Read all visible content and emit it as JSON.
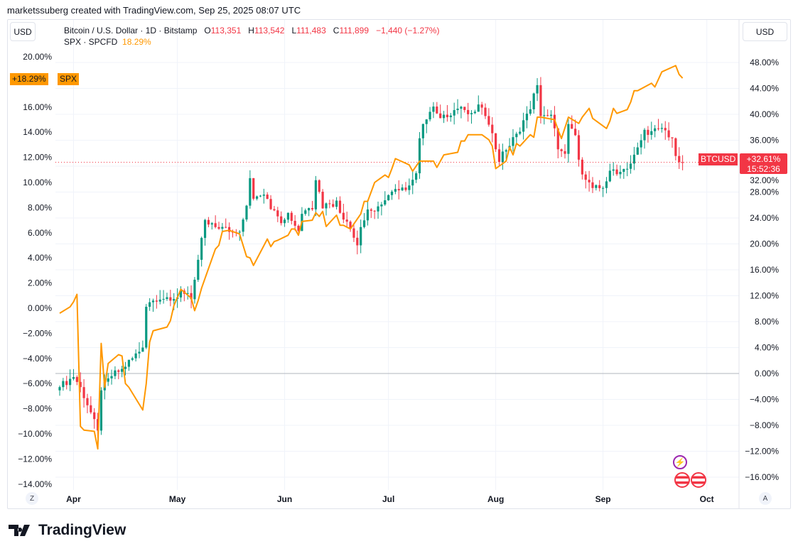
{
  "credit": "marketssuberg created with TradingView.com, Sep 25, 2025 08:07 UTC",
  "currency_left": "USD",
  "currency_right": "USD",
  "legend": {
    "symbol": "Bitcoin / U.S. Dollar · 1D · Bitstamp",
    "o_label": "O",
    "o": "113,351",
    "h_label": "H",
    "h": "113,542",
    "l_label": "L",
    "l": "111,483",
    "c_label": "C",
    "c": "111,899",
    "change": "−1,440 (−1.27%)",
    "spx": "SPX · SPCFD",
    "spx_value": "18.29%"
  },
  "labels": {
    "spx_pct": "+18.29%",
    "spx_name": "SPX",
    "btc_name": "BTCUSD",
    "btc_pct": "+32.61%",
    "btc_countdown": "15:52:36"
  },
  "buttons": {
    "z": "Z",
    "a": "A"
  },
  "logo": "TradingView",
  "icons": [
    "lightning-event-icon",
    "us-flag-icon",
    "us-flag-icon",
    "tradingview-logo-icon"
  ],
  "colors": {
    "up": "#089981",
    "down": "#f23645",
    "spx": "#ff9800",
    "zero": "#b2b5be"
  },
  "chart_data": {
    "type": "candlestick+line",
    "x_ticks": [
      "Apr",
      "May",
      "Jun",
      "Jul",
      "Aug",
      "Sep",
      "Oct"
    ],
    "left_axis": {
      "ticks": [
        "20.00%",
        "16.00%",
        "14.00%",
        "12.00%",
        "10.00%",
        "8.00%",
        "6.00%",
        "4.00%",
        "2.00%",
        "0.00%",
        "−2.00%",
        "−4.00%",
        "−6.00%",
        "−8.00%",
        "−10.00%",
        "−12.00%",
        "−14.00%"
      ],
      "range": [
        -14.5,
        20.5
      ]
    },
    "right_axis": {
      "ticks": [
        "48.00%",
        "44.00%",
        "40.00%",
        "36.00%",
        "32.00%",
        "28.00%",
        "24.00%",
        "20.00%",
        "16.00%",
        "12.00%",
        "8.00%",
        "4.00%",
        "0.00%",
        "−4.00%",
        "−8.00%",
        "−12.00%",
        "−16.00%"
      ],
      "range": [
        -17,
        48.5
      ]
    },
    "series": [
      {
        "name": "BTCUSD",
        "axis": "right",
        "unit": "% change",
        "closes": [
          [
            "2025-03-28",
            -2.1
          ],
          [
            "2025-04-01",
            -0.4
          ],
          [
            "2025-04-03",
            -2.1
          ],
          [
            "2025-04-06",
            -6.0
          ],
          [
            "2025-04-08",
            -9.2
          ],
          [
            "2025-04-09",
            -2.6
          ],
          [
            "2025-04-12",
            -0.4
          ],
          [
            "2025-04-15",
            0.7
          ],
          [
            "2025-04-21",
            4.0
          ],
          [
            "2025-04-22",
            10.5
          ],
          [
            "2025-04-23",
            11.0
          ],
          [
            "2025-04-25",
            11.5
          ],
          [
            "2025-04-30",
            11.5
          ],
          [
            "2025-05-02",
            12.7
          ],
          [
            "2025-05-05",
            11.5
          ],
          [
            "2025-05-08",
            20.4
          ],
          [
            "2025-05-09",
            23.7
          ],
          [
            "2025-05-12",
            22.6
          ],
          [
            "2025-05-15",
            22.6
          ],
          [
            "2025-05-19",
            21.5
          ],
          [
            "2025-05-21",
            25.9
          ],
          [
            "2025-05-22",
            29.7
          ],
          [
            "2025-05-23",
            27.0
          ],
          [
            "2025-05-26",
            28.0
          ],
          [
            "2025-05-29",
            24.8
          ],
          [
            "2025-05-31",
            23.7
          ],
          [
            "2025-06-02",
            24.8
          ],
          [
            "2025-06-05",
            22.0
          ],
          [
            "2025-06-06",
            24.8
          ],
          [
            "2025-06-09",
            25.9
          ],
          [
            "2025-06-10",
            30.2
          ],
          [
            "2025-06-12",
            25.9
          ],
          [
            "2025-06-16",
            26.4
          ],
          [
            "2025-06-17",
            24.8
          ],
          [
            "2025-06-19",
            23.7
          ],
          [
            "2025-06-22",
            19.8
          ],
          [
            "2025-06-23",
            22.6
          ],
          [
            "2025-06-25",
            24.8
          ],
          [
            "2025-06-30",
            26.4
          ],
          [
            "2025-07-03",
            28.9
          ],
          [
            "2025-07-07",
            28.5
          ],
          [
            "2025-07-09",
            31.3
          ],
          [
            "2025-07-10",
            36.3
          ],
          [
            "2025-07-11",
            38.5
          ],
          [
            "2025-07-14",
            41.2
          ],
          [
            "2025-07-15",
            39.6
          ],
          [
            "2025-07-18",
            40.1
          ],
          [
            "2025-07-22",
            41.2
          ],
          [
            "2025-07-25",
            39.6
          ],
          [
            "2025-07-27",
            41.2
          ],
          [
            "2025-07-30",
            39.0
          ],
          [
            "2025-08-01",
            34.6
          ],
          [
            "2025-08-02",
            33.0
          ],
          [
            "2025-08-05",
            35.2
          ],
          [
            "2025-08-08",
            37.9
          ],
          [
            "2025-08-11",
            41.2
          ],
          [
            "2025-08-13",
            44.5
          ],
          [
            "2025-08-14",
            40.1
          ],
          [
            "2025-08-17",
            39.6
          ],
          [
            "2025-08-18",
            37.4
          ],
          [
            "2025-08-19",
            34.6
          ],
          [
            "2025-08-21",
            33.5
          ],
          [
            "2025-08-22",
            38.5
          ],
          [
            "2025-08-24",
            36.8
          ],
          [
            "2025-08-25",
            33.0
          ],
          [
            "2025-08-26",
            31.3
          ],
          [
            "2025-08-29",
            28.6
          ],
          [
            "2025-09-01",
            28.6
          ],
          [
            "2025-09-03",
            31.3
          ],
          [
            "2025-09-05",
            30.7
          ],
          [
            "2025-09-09",
            32.4
          ],
          [
            "2025-09-11",
            34.6
          ],
          [
            "2025-09-13",
            37.4
          ],
          [
            "2025-09-17",
            37.4
          ],
          [
            "2025-09-18",
            37.9
          ],
          [
            "2025-09-21",
            36.3
          ],
          [
            "2025-09-22",
            33.0
          ],
          [
            "2025-09-24",
            32.6
          ]
        ]
      },
      {
        "name": "SPX",
        "axis": "left",
        "unit": "% change",
        "points": [
          [
            "2025-03-28",
            -0.4
          ],
          [
            "2025-03-31",
            0.1
          ],
          [
            "2025-04-01",
            0.5
          ],
          [
            "2025-04-02",
            1.1
          ],
          [
            "2025-04-03",
            -9.4
          ],
          [
            "2025-04-04",
            -9.7
          ],
          [
            "2025-04-07",
            -9.8
          ],
          [
            "2025-04-08",
            -11.2
          ],
          [
            "2025-04-09",
            -2.8
          ],
          [
            "2025-04-10",
            -6.3
          ],
          [
            "2025-04-11",
            -4.4
          ],
          [
            "2025-04-14",
            -3.7
          ],
          [
            "2025-04-15",
            -3.8
          ],
          [
            "2025-04-16",
            -6.0
          ],
          [
            "2025-04-17",
            -6.3
          ],
          [
            "2025-04-21",
            -8.1
          ],
          [
            "2025-04-22",
            -6.0
          ],
          [
            "2025-04-23",
            -2.7
          ],
          [
            "2025-04-24",
            -1.8
          ],
          [
            "2025-04-28",
            -1.5
          ],
          [
            "2025-04-29",
            -1.0
          ],
          [
            "2025-04-30",
            0.2
          ],
          [
            "2025-05-02",
            1.5
          ],
          [
            "2025-05-05",
            0.8
          ],
          [
            "2025-05-06",
            -0.2
          ],
          [
            "2025-05-07",
            0.6
          ],
          [
            "2025-05-08",
            1.6
          ],
          [
            "2025-05-12",
            4.7
          ],
          [
            "2025-05-13",
            5.0
          ],
          [
            "2025-05-14",
            6.1
          ],
          [
            "2025-05-16",
            6.2
          ],
          [
            "2025-05-19",
            5.9
          ],
          [
            "2025-05-21",
            4.1
          ],
          [
            "2025-05-22",
            4.0
          ],
          [
            "2025-05-23",
            3.4
          ],
          [
            "2025-05-27",
            5.5
          ],
          [
            "2025-05-28",
            4.9
          ],
          [
            "2025-05-29",
            5.3
          ],
          [
            "2025-05-30",
            5.4
          ],
          [
            "2025-06-02",
            5.8
          ],
          [
            "2025-06-03",
            6.3
          ],
          [
            "2025-06-04",
            6.3
          ],
          [
            "2025-06-05",
            5.8
          ],
          [
            "2025-06-06",
            6.9
          ],
          [
            "2025-06-09",
            7.0
          ],
          [
            "2025-06-10",
            7.6
          ],
          [
            "2025-06-11",
            7.3
          ],
          [
            "2025-06-12",
            7.7
          ],
          [
            "2025-06-13",
            6.5
          ],
          [
            "2025-06-16",
            7.4
          ],
          [
            "2025-06-17",
            6.6
          ],
          [
            "2025-06-18",
            6.6
          ],
          [
            "2025-06-20",
            6.3
          ],
          [
            "2025-06-23",
            7.5
          ],
          [
            "2025-06-24",
            8.5
          ],
          [
            "2025-06-25",
            8.5
          ],
          [
            "2025-06-27",
            10.0
          ],
          [
            "2025-06-30",
            10.6
          ],
          [
            "2025-07-01",
            10.4
          ],
          [
            "2025-07-02",
            11.1
          ],
          [
            "2025-07-03",
            11.9
          ],
          [
            "2025-07-07",
            11.4
          ],
          [
            "2025-07-08",
            10.9
          ],
          [
            "2025-07-10",
            11.7
          ],
          [
            "2025-07-14",
            11.7
          ],
          [
            "2025-07-15",
            11.2
          ],
          [
            "2025-07-17",
            12.2
          ],
          [
            "2025-07-21",
            12.4
          ],
          [
            "2025-07-22",
            13.3
          ],
          [
            "2025-07-23",
            13.3
          ],
          [
            "2025-07-24",
            13.8
          ],
          [
            "2025-07-28",
            13.8
          ],
          [
            "2025-07-30",
            13.4
          ],
          [
            "2025-07-31",
            12.9
          ],
          [
            "2025-08-01",
            11.1
          ],
          [
            "2025-08-04",
            11.7
          ],
          [
            "2025-08-05",
            12.8
          ],
          [
            "2025-08-06",
            12.2
          ],
          [
            "2025-08-07",
            13.1
          ],
          [
            "2025-08-08",
            12.9
          ],
          [
            "2025-08-11",
            13.8
          ],
          [
            "2025-08-12",
            13.6
          ],
          [
            "2025-08-13",
            15.2
          ],
          [
            "2025-08-14",
            15.2
          ],
          [
            "2025-08-18",
            15.0
          ],
          [
            "2025-08-19",
            14.2
          ],
          [
            "2025-08-20",
            13.5
          ],
          [
            "2025-08-22",
            15.2
          ],
          [
            "2025-08-25",
            14.7
          ],
          [
            "2025-08-26",
            15.2
          ],
          [
            "2025-08-28",
            15.9
          ],
          [
            "2025-08-29",
            15.1
          ],
          [
            "2025-09-02",
            14.3
          ],
          [
            "2025-09-03",
            14.9
          ],
          [
            "2025-09-04",
            15.9
          ],
          [
            "2025-09-05",
            15.5
          ],
          [
            "2025-09-08",
            15.8
          ],
          [
            "2025-09-09",
            16.4
          ],
          [
            "2025-09-10",
            17.3
          ],
          [
            "2025-09-11",
            17.3
          ],
          [
            "2025-09-15",
            17.9
          ],
          [
            "2025-09-16",
            17.6
          ],
          [
            "2025-09-18",
            18.8
          ],
          [
            "2025-09-22",
            19.3
          ],
          [
            "2025-09-23",
            18.6
          ],
          [
            "2025-09-24",
            18.3
          ]
        ]
      }
    ],
    "grid": true
  }
}
